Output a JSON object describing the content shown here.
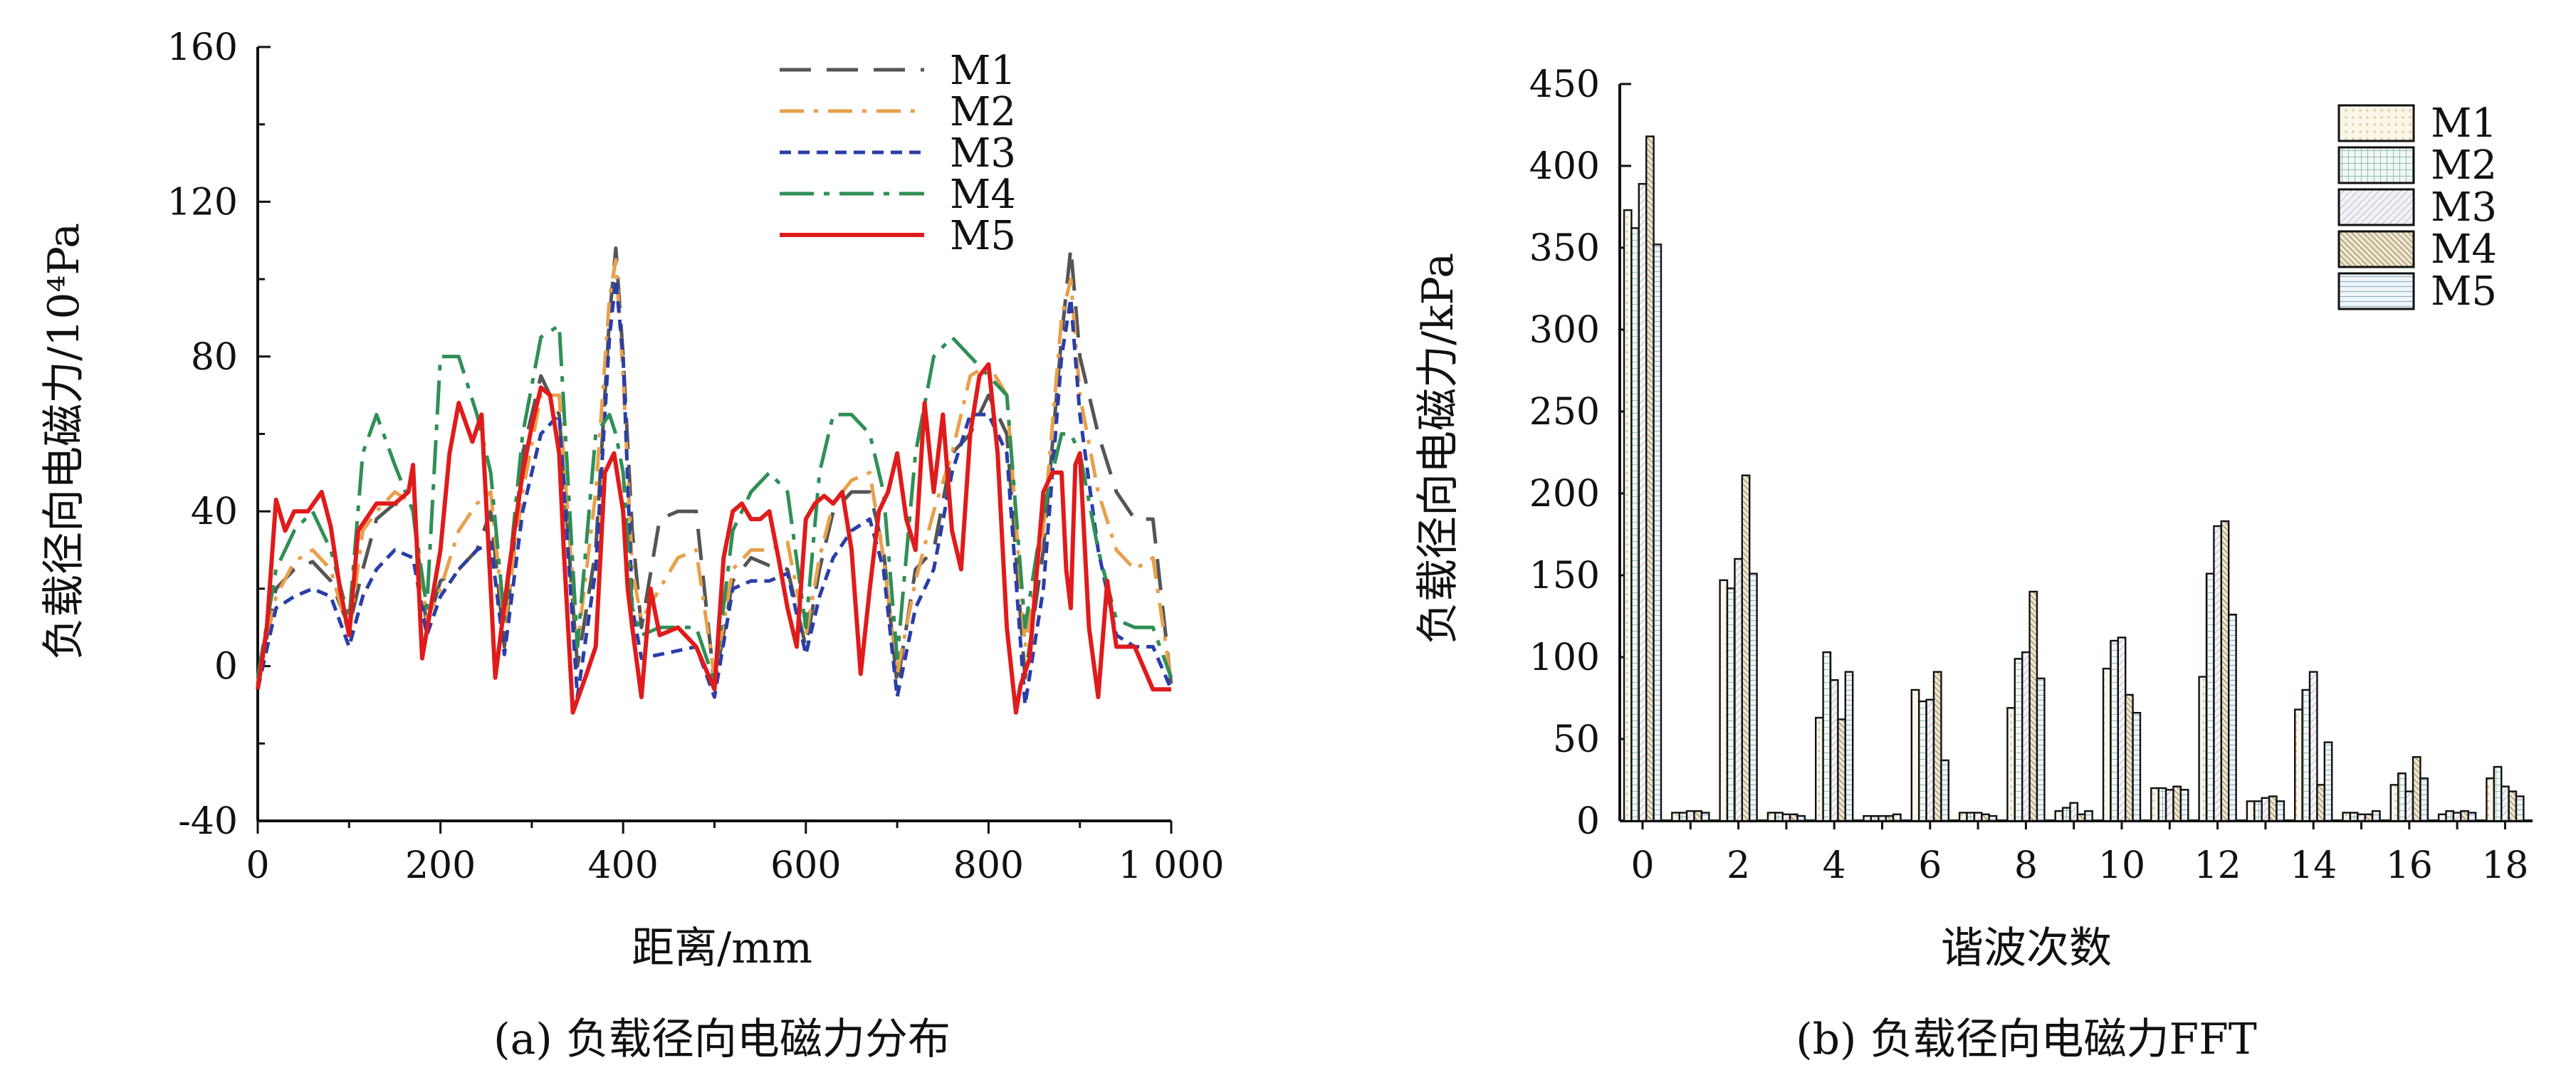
{
  "chart_data": [
    {
      "type": "line",
      "caption": "(a) 负载径向电磁力分布",
      "xlabel": "距离/mm",
      "ylabel": "负载径向电磁力/10⁴Pa",
      "xlim": [
        0,
        1000
      ],
      "ylim": [
        -40,
        160
      ],
      "xticks": [
        0,
        200,
        400,
        600,
        800,
        1000
      ],
      "xtick_labels": [
        "0",
        "200",
        "400",
        "600",
        "800",
        "1 000"
      ],
      "yticks": [
        -40,
        0,
        40,
        80,
        120,
        160
      ],
      "ytick_labels": [
        "-40",
        "0",
        "40",
        "80",
        "120",
        "160"
      ],
      "grid": false,
      "legend_position": "top-right",
      "series": [
        {
          "name": "M1",
          "color": "#555555",
          "dash": "dash",
          "x": [
            0,
            20,
            40,
            60,
            80,
            100,
            115,
            130,
            150,
            170,
            185,
            200,
            220,
            240,
            255,
            270,
            290,
            310,
            330,
            350,
            370,
            385,
            392,
            400,
            410,
            420,
            440,
            460,
            480,
            500,
            520,
            540,
            560,
            580,
            600,
            615,
            630,
            650,
            670,
            685,
            700,
            720,
            740,
            760,
            780,
            800,
            820,
            840,
            860,
            880,
            890,
            900,
            920,
            940,
            960,
            980,
            1000
          ],
          "y": [
            -5,
            20,
            25,
            27,
            22,
            10,
            25,
            38,
            42,
            40,
            10,
            22,
            25,
            30,
            40,
            5,
            55,
            75,
            65,
            0,
            30,
            90,
            108,
            80,
            35,
            10,
            38,
            40,
            40,
            -5,
            22,
            28,
            26,
            25,
            5,
            25,
            40,
            45,
            45,
            30,
            -5,
            25,
            30,
            55,
            60,
            70,
            60,
            -3,
            30,
            85,
            108,
            80,
            60,
            45,
            38,
            38,
            -5
          ]
        },
        {
          "name": "M2",
          "color": "#e8a04a",
          "dash": "dashdot",
          "x": [
            0,
            20,
            40,
            60,
            80,
            100,
            115,
            130,
            150,
            170,
            185,
            200,
            220,
            240,
            255,
            270,
            290,
            310,
            330,
            350,
            370,
            385,
            392,
            400,
            410,
            420,
            440,
            460,
            480,
            500,
            520,
            540,
            560,
            580,
            600,
            615,
            630,
            650,
            670,
            685,
            700,
            720,
            740,
            760,
            780,
            800,
            820,
            840,
            860,
            880,
            890,
            900,
            920,
            940,
            960,
            980,
            1000
          ],
          "y": [
            -4,
            18,
            27,
            30,
            25,
            8,
            35,
            40,
            45,
            42,
            12,
            20,
            35,
            42,
            45,
            10,
            45,
            70,
            70,
            5,
            45,
            95,
            105,
            75,
            25,
            12,
            20,
            28,
            30,
            -3,
            25,
            30,
            30,
            32,
            8,
            28,
            42,
            48,
            50,
            28,
            -2,
            22,
            40,
            55,
            75,
            78,
            70,
            5,
            35,
            90,
            100,
            70,
            45,
            30,
            25,
            28,
            -4
          ]
        },
        {
          "name": "M3",
          "color": "#2a3ea8",
          "dash": "shortdash",
          "x": [
            0,
            20,
            40,
            60,
            80,
            100,
            115,
            130,
            150,
            170,
            185,
            200,
            220,
            240,
            255,
            270,
            290,
            310,
            330,
            350,
            370,
            385,
            392,
            400,
            410,
            420,
            440,
            460,
            480,
            500,
            520,
            540,
            560,
            580,
            600,
            615,
            630,
            650,
            670,
            685,
            700,
            720,
            740,
            760,
            780,
            800,
            820,
            840,
            860,
            880,
            890,
            900,
            920,
            940,
            960,
            980,
            1000
          ],
          "y": [
            -6,
            15,
            18,
            20,
            18,
            5,
            18,
            25,
            30,
            28,
            8,
            18,
            25,
            30,
            32,
            3,
            40,
            60,
            65,
            -8,
            25,
            85,
            100,
            80,
            15,
            2,
            3,
            4,
            5,
            -8,
            20,
            22,
            22,
            24,
            3,
            18,
            28,
            35,
            38,
            25,
            -8,
            15,
            25,
            50,
            65,
            65,
            55,
            -10,
            20,
            80,
            95,
            65,
            30,
            8,
            5,
            5,
            -6
          ]
        },
        {
          "name": "M4",
          "color": "#2f8f55",
          "dash": "longdashdot",
          "x": [
            0,
            20,
            40,
            60,
            80,
            100,
            115,
            130,
            150,
            170,
            185,
            200,
            220,
            240,
            255,
            270,
            290,
            310,
            330,
            350,
            370,
            385,
            392,
            400,
            410,
            420,
            440,
            460,
            480,
            500,
            520,
            540,
            560,
            580,
            600,
            615,
            630,
            650,
            670,
            685,
            700,
            720,
            740,
            760,
            780,
            800,
            820,
            840,
            860,
            880,
            890,
            900,
            920,
            940,
            960,
            980,
            1000
          ],
          "y": [
            -3,
            25,
            35,
            40,
            30,
            12,
            55,
            65,
            52,
            40,
            15,
            80,
            80,
            65,
            50,
            12,
            60,
            85,
            88,
            5,
            60,
            65,
            60,
            50,
            15,
            8,
            10,
            10,
            10,
            -4,
            35,
            45,
            50,
            45,
            10,
            50,
            65,
            65,
            60,
            45,
            2,
            55,
            80,
            85,
            80,
            75,
            70,
            10,
            40,
            60,
            60,
            55,
            30,
            12,
            10,
            10,
            -3
          ]
        },
        {
          "name": "M5",
          "color": "#e01b1b",
          "dash": "solid",
          "x": [
            0,
            10,
            20,
            30,
            40,
            55,
            70,
            80,
            90,
            100,
            110,
            130,
            150,
            165,
            170,
            180,
            200,
            210,
            220,
            235,
            245,
            255,
            260,
            275,
            290,
            300,
            310,
            320,
            330,
            335,
            345,
            360,
            370,
            380,
            390,
            400,
            405,
            410,
            420,
            430,
            440,
            460,
            480,
            500,
            510,
            520,
            530,
            540,
            550,
            560,
            570,
            580,
            590,
            600,
            610,
            620,
            630,
            640,
            650,
            660,
            670,
            680,
            690,
            700,
            710,
            720,
            730,
            740,
            750,
            760,
            770,
            780,
            790,
            800,
            810,
            820,
            830,
            835,
            845,
            860,
            870,
            880,
            885,
            890,
            895,
            900,
            910,
            920,
            930,
            940,
            960,
            980,
            1000
          ],
          "y": [
            -6,
            10,
            43,
            35,
            40,
            40,
            45,
            36,
            20,
            8,
            35,
            42,
            42,
            45,
            52,
            2,
            30,
            55,
            68,
            58,
            65,
            20,
            -3,
            25,
            50,
            62,
            72,
            70,
            55,
            30,
            -12,
            -2,
            5,
            50,
            55,
            40,
            20,
            10,
            -8,
            20,
            8,
            10,
            5,
            -6,
            28,
            40,
            42,
            38,
            38,
            40,
            28,
            15,
            5,
            38,
            42,
            44,
            42,
            45,
            30,
            -2,
            20,
            40,
            45,
            55,
            38,
            30,
            68,
            45,
            65,
            35,
            25,
            60,
            75,
            78,
            55,
            10,
            -12,
            -5,
            2,
            45,
            50,
            50,
            25,
            15,
            52,
            55,
            10,
            -8,
            22,
            5,
            5,
            -6,
            -6
          ]
        }
      ]
    },
    {
      "type": "bar",
      "caption": "(b) 负载径向电磁力FFT",
      "xlabel": "谐波次数",
      "ylabel": "负载径向电磁力/kPa",
      "ylim": [
        0,
        450
      ],
      "yticks": [
        0,
        50,
        100,
        150,
        200,
        250,
        300,
        350,
        400,
        450
      ],
      "categories": [
        "0",
        "1",
        "2",
        "3",
        "4",
        "5",
        "6",
        "7",
        "8",
        "9",
        "10",
        "11",
        "12",
        "13",
        "14",
        "15",
        "16",
        "17",
        "18"
      ],
      "xtick_labels": [
        "0",
        "2",
        "4",
        "6",
        "8",
        "10",
        "12",
        "14",
        "16",
        "18"
      ],
      "grid": false,
      "legend_position": "top-right",
      "series": [
        {
          "name": "M1",
          "fill": "#fbf6e8",
          "pattern": "dots-tan",
          "values": [
            373,
            5,
            147,
            5,
            63,
            3,
            80,
            5,
            69,
            6,
            93,
            20,
            88,
            12,
            68,
            5,
            22,
            4,
            26
          ]
        },
        {
          "name": "M2",
          "fill": "#eef5f3",
          "pattern": "grid-teal",
          "values": [
            362,
            5,
            142,
            5,
            103,
            3,
            73,
            5,
            99,
            8,
            110,
            20,
            151,
            12,
            80,
            5,
            29,
            6,
            33
          ]
        },
        {
          "name": "M3",
          "fill": "#f1f1f6",
          "pattern": "hatch-gray",
          "values": [
            389,
            6,
            160,
            4,
            86,
            3,
            74,
            5,
            103,
            11,
            112,
            19,
            180,
            14,
            91,
            4,
            18,
            5,
            21
          ]
        },
        {
          "name": "M4",
          "fill": "#e7e1cf",
          "pattern": "diag-olive",
          "values": [
            418,
            6,
            211,
            4,
            62,
            3,
            91,
            4,
            140,
            4,
            77,
            21,
            183,
            15,
            22,
            4,
            39,
            6,
            18
          ]
        },
        {
          "name": "M5",
          "fill": "#eef3f7",
          "pattern": "hlines-blue",
          "values": [
            352,
            5,
            151,
            3,
            91,
            4,
            37,
            3,
            87,
            6,
            66,
            19,
            126,
            12,
            48,
            6,
            26,
            5,
            15
          ]
        }
      ]
    }
  ]
}
